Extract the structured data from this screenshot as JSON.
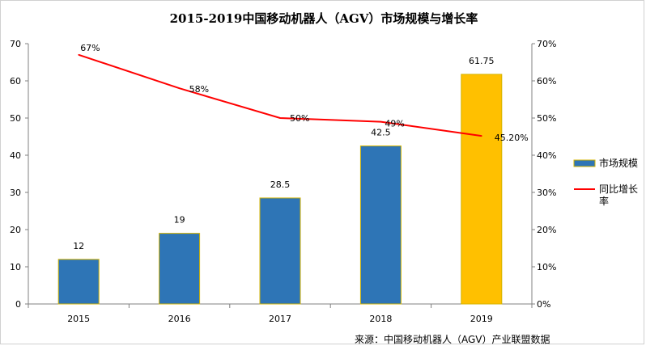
{
  "chart_data": {
    "type": "bar+line",
    "title": "2015-2019中国移动机器人（AGV）市场规模与增长率",
    "categories": [
      "2015",
      "2016",
      "2017",
      "2018",
      "2019"
    ],
    "series": [
      {
        "name": "市场规模",
        "type": "bar",
        "axis": "left",
        "values": [
          12,
          19,
          28.5,
          42.5,
          61.75
        ],
        "labels": [
          "12",
          "19",
          "28.5",
          "42.5",
          "61.75"
        ],
        "colors": [
          "#2e75b6",
          "#2e75b6",
          "#2e75b6",
          "#2e75b6",
          "#ffc000"
        ],
        "edge_color": "#d4b400"
      },
      {
        "name": "同比增长率",
        "type": "line",
        "axis": "right",
        "values": [
          67,
          58,
          50,
          49,
          45.2
        ],
        "labels": [
          "67%",
          "58%",
          "50%",
          "49%",
          "45.20%"
        ],
        "color": "#ff0000"
      }
    ],
    "y_left": {
      "min": 0,
      "max": 70,
      "step": 10,
      "ticks": [
        "0",
        "10",
        "20",
        "30",
        "40",
        "50",
        "60",
        "70"
      ]
    },
    "y_right": {
      "min": 0,
      "max": 70,
      "step": 10,
      "ticks": [
        "0%",
        "10%",
        "20%",
        "30%",
        "40%",
        "50%",
        "60%",
        "70%"
      ]
    },
    "legend": {
      "position": "right",
      "items": [
        {
          "label": "市场规模",
          "line1": "市场规模",
          "line2": ""
        },
        {
          "label": "同比增长率",
          "line1": "同比增长",
          "line2": "率"
        }
      ]
    },
    "grid": false
  },
  "source": "来源：中国移动机器人（AGV）产业联盟数据"
}
